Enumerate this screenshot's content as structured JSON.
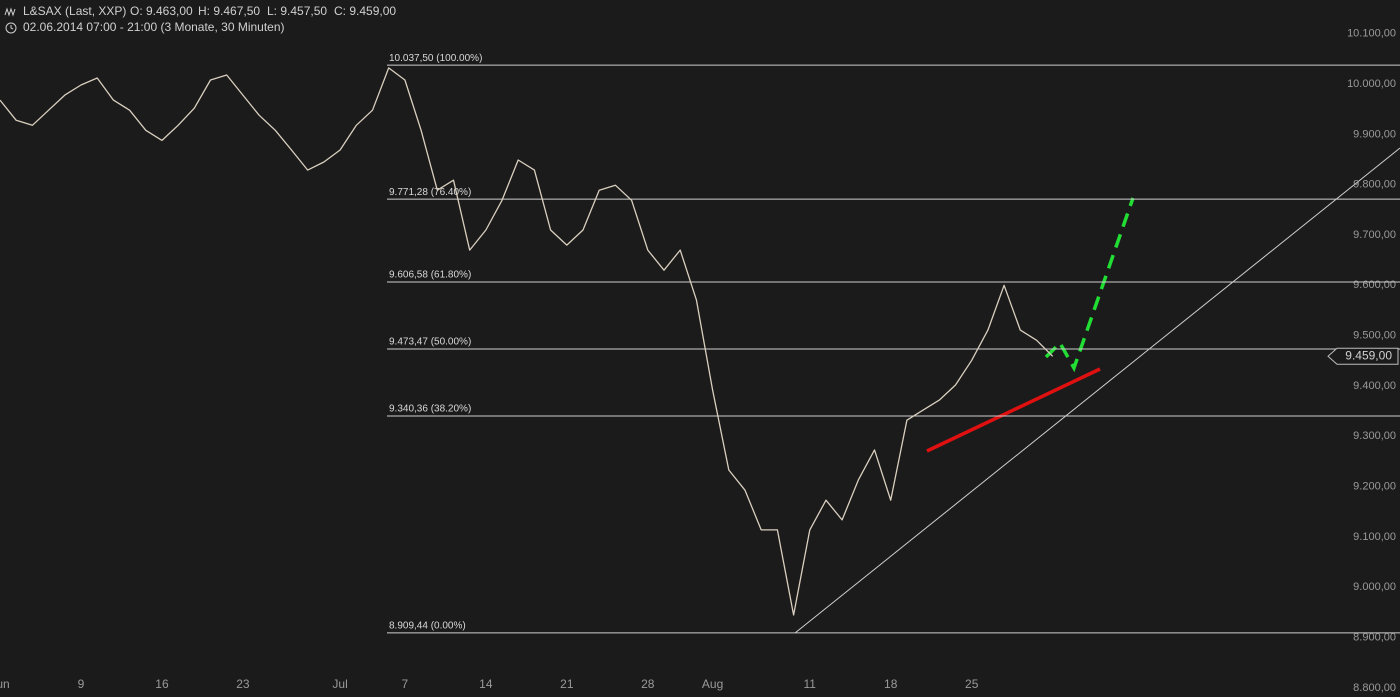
{
  "chart_data": {
    "type": "line",
    "title": "L&SAX (Last, XXP)",
    "stats": [
      "O: 9.463,00",
      "H: 9.467,50",
      "L: 9.457,50",
      "C: 9.459,00"
    ],
    "subtitle": "02.06.2014 07:00 - 21:00 (3 Monate, 30 Minuten)",
    "categories": [
      "Jun",
      null,
      null,
      null,
      null,
      "9",
      null,
      null,
      null,
      null,
      "16",
      null,
      null,
      null,
      null,
      "23",
      null,
      null,
      null,
      null,
      null,
      "Jul",
      null,
      null,
      null,
      "7",
      null,
      null,
      null,
      null,
      "14",
      null,
      null,
      null,
      null,
      "21",
      null,
      null,
      null,
      null,
      "28",
      null,
      null,
      null,
      "Aug",
      null,
      null,
      null,
      null,
      null,
      "11",
      null,
      null,
      null,
      null,
      "18",
      null,
      null,
      null,
      null,
      "25",
      null,
      null,
      null,
      null,
      null,
      null,
      null,
      null,
      null,
      null,
      null,
      null,
      null,
      null,
      null,
      null,
      null,
      null,
      null,
      null,
      null,
      null
    ],
    "values": [
      9968,
      9928,
      9918,
      9948,
      9978,
      9998,
      10012,
      9968,
      9948,
      9908,
      9888,
      9918,
      9952,
      10008,
      10018,
      9978,
      9938,
      9908,
      9869,
      9829,
      9845,
      9869,
      9918,
      9948,
      10032,
      10008,
      9908,
      9789,
      9809,
      9670,
      9710,
      9769,
      9849,
      9829,
      9710,
      9680,
      9710,
      9789,
      9799,
      9769,
      9670,
      9630,
      9670,
      9571,
      9392,
      9233,
      9193,
      9114,
      9114,
      8945,
      9114,
      9173,
      9134,
      9213,
      9273,
      9173,
      9332,
      9352,
      9372,
      9402,
      9451,
      9511,
      9600,
      9511,
      9491,
      9459,
      null,
      null,
      null,
      null,
      null,
      null,
      null,
      null,
      null,
      null,
      null,
      null,
      null,
      null,
      null,
      null,
      null
    ],
    "color": "#d9cfbf",
    "ylim": [
      8782,
      10167
    ],
    "yticks": [
      {
        "value": 8800,
        "label": "8.800,00"
      },
      {
        "value": 8900,
        "label": "8.900,00"
      },
      {
        "value": 9000,
        "label": "9.000,00"
      },
      {
        "value": 9100,
        "label": "9.100,00"
      },
      {
        "value": 9200,
        "label": "9.200,00"
      },
      {
        "value": 9300,
        "label": "9.300,00"
      },
      {
        "value": 9400,
        "label": "9.400,00"
      },
      {
        "value": 9500,
        "label": "9.500,00"
      },
      {
        "value": 9600,
        "label": "9.600,00"
      },
      {
        "value": 9700,
        "label": "9.700,00"
      },
      {
        "value": 9800,
        "label": "9.800,00"
      },
      {
        "value": 9900,
        "label": "9.900,00"
      },
      {
        "value": 10000,
        "label": "10.000,00"
      },
      {
        "value": 10100,
        "label": "10.100,00"
      }
    ],
    "grid": false,
    "levels": [
      {
        "value": 10037.5,
        "label": "10.037,50 (100.00%)"
      },
      {
        "value": 9771.28,
        "label": "9.771,28 (76.40%)"
      },
      {
        "value": 9606.58,
        "label": "9.606,58 (61.80%)"
      },
      {
        "value": 9473.47,
        "label": "9.473,47 (50.00%)"
      },
      {
        "value": 9340.36,
        "label": "9.340,36 (38.20%)"
      },
      {
        "value": 8909.44,
        "label": "8.909,44 (0.00%)"
      }
    ],
    "last": {
      "value": 9459,
      "label": "9.459,00"
    }
  }
}
